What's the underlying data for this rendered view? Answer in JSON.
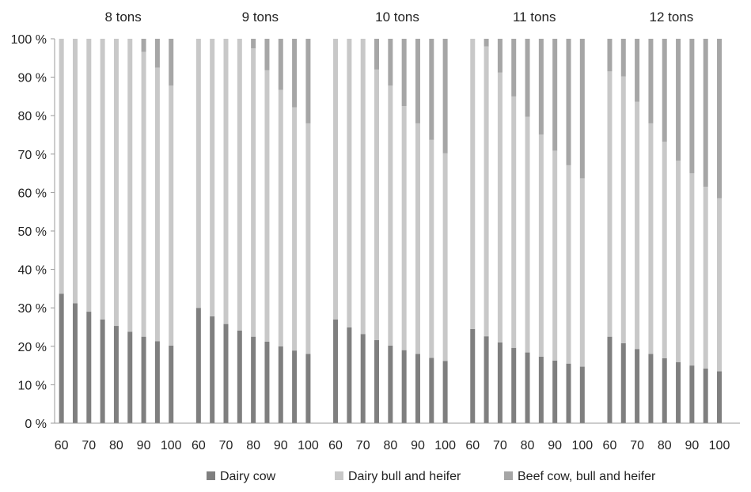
{
  "chart_data": {
    "type": "bar",
    "stacked": true,
    "percent_stacked": true,
    "groups": [
      "8 tons",
      "9 tons",
      "10 tons",
      "11 tons",
      "12 tons"
    ],
    "categories": [
      "60",
      "65",
      "70",
      "75",
      "80",
      "85",
      "90",
      "95",
      "100"
    ],
    "x_tick_labels": [
      "60",
      "70",
      "80",
      "90",
      "100"
    ],
    "y_ticks": [
      "0 %",
      "10 %",
      "20 %",
      "30 %",
      "40 %",
      "50 %",
      "60 %",
      "70 %",
      "80 %",
      "90 %",
      "100 %"
    ],
    "ylim": [
      0,
      100
    ],
    "grid": false,
    "legend_position": "bottom",
    "series": [
      {
        "name": "Dairy cow",
        "color": "#7f7f7f",
        "values": [
          [
            33.7,
            31.2,
            29.0,
            27.0,
            25.3,
            23.8,
            22.5,
            21.3,
            20.2
          ],
          [
            30.0,
            27.8,
            25.8,
            24.1,
            22.5,
            21.2,
            20.0,
            18.9,
            18.0
          ],
          [
            27.0,
            24.9,
            23.2,
            21.6,
            20.2,
            19.0,
            18.0,
            17.0,
            16.2
          ],
          [
            24.5,
            22.6,
            21.0,
            19.6,
            18.4,
            17.3,
            16.3,
            15.5,
            14.7
          ],
          [
            22.5,
            20.8,
            19.3,
            18.0,
            16.9,
            15.9,
            15.0,
            14.2,
            13.5
          ]
        ]
      },
      {
        "name": "Dairy bull and heifer",
        "color": "#c8c8c8",
        "values": [
          [
            66.3,
            68.8,
            71.0,
            73.0,
            74.7,
            76.2,
            74.1,
            71.2,
            67.6
          ],
          [
            70.0,
            72.2,
            74.2,
            75.9,
            75.0,
            70.6,
            66.7,
            63.3,
            60.0
          ],
          [
            73.0,
            75.1,
            76.8,
            70.4,
            67.6,
            63.5,
            60.0,
            56.7,
            54.0
          ],
          [
            75.5,
            75.4,
            70.2,
            65.4,
            61.3,
            57.8,
            54.6,
            51.6,
            49.0
          ],
          [
            69.0,
            69.4,
            64.3,
            60.0,
            56.3,
            52.4,
            50.0,
            47.3,
            45.0
          ]
        ]
      },
      {
        "name": "Beef cow, bull and heifer",
        "color": "#a6a6a6",
        "values": [
          [
            0,
            0,
            0,
            0,
            0,
            0,
            3.4,
            7.5,
            12.2
          ],
          [
            0,
            0,
            0,
            0,
            2.5,
            8.2,
            13.3,
            17.8,
            22.0
          ],
          [
            0,
            0,
            0,
            8.0,
            12.2,
            17.5,
            22.0,
            26.3,
            29.8
          ],
          [
            0,
            2.0,
            8.8,
            15.0,
            20.3,
            24.9,
            29.1,
            32.9,
            36.3
          ],
          [
            8.5,
            9.8,
            16.4,
            22.0,
            26.8,
            31.7,
            35.0,
            38.5,
            41.5
          ]
        ]
      }
    ]
  }
}
